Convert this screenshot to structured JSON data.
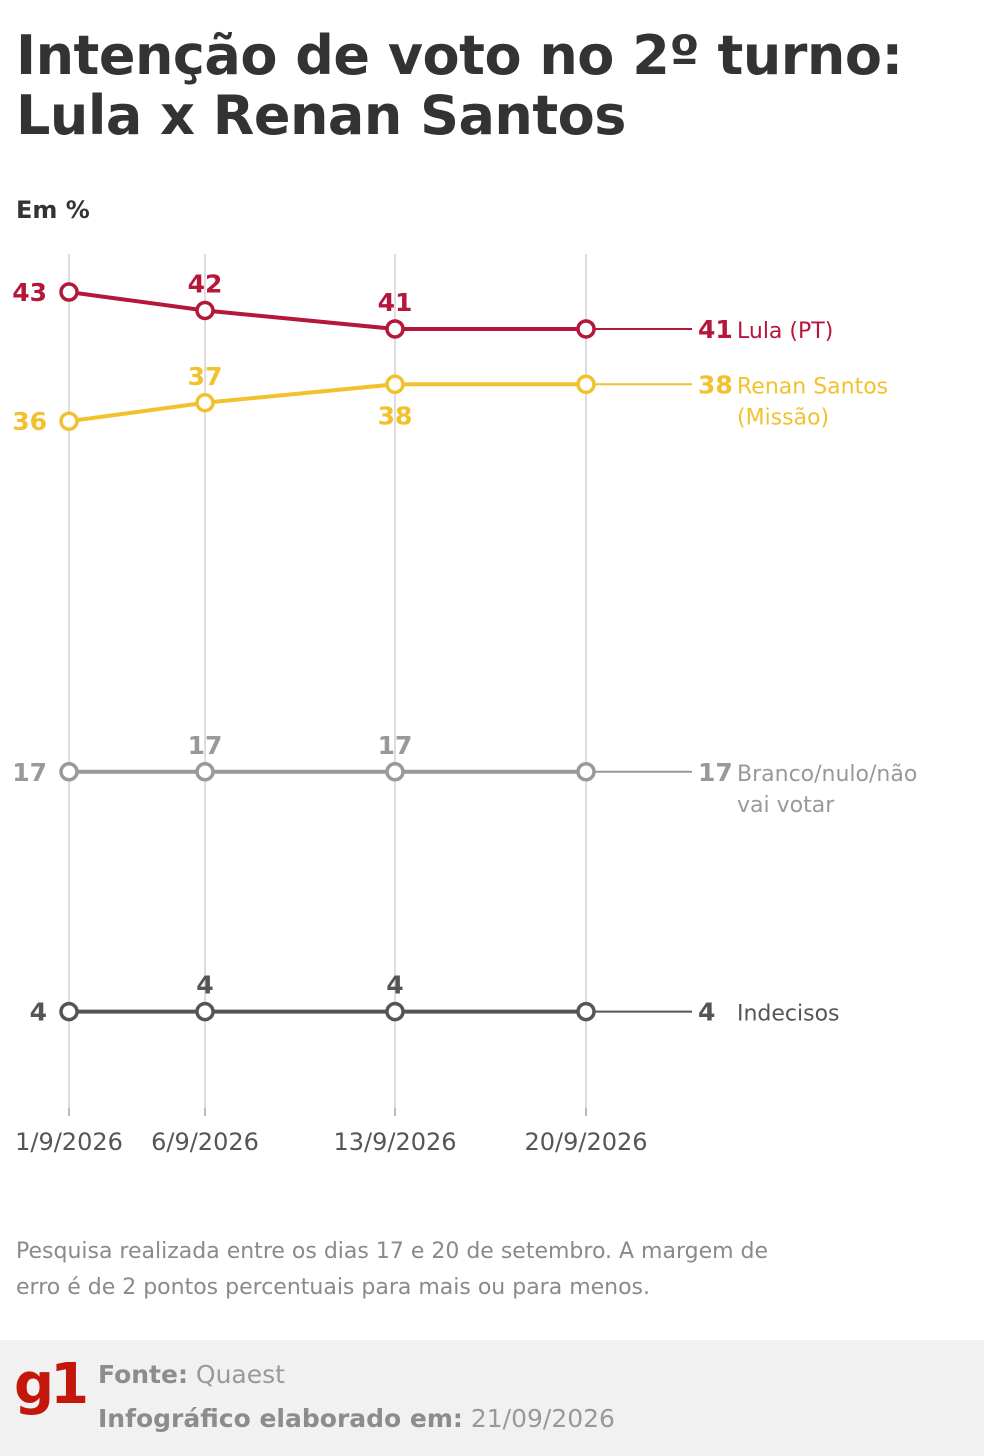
{
  "title": "Intenção de voto no 2º turno: Lula x Renan Santos",
  "unit_label": "Em %",
  "note": "Pesquisa realizada entre os dias 17 e 20 de setembro. A margem de erro é de 2 pontos percentuais para mais ou para menos.",
  "footer": {
    "source_label": "Fonte:",
    "source_value": "Quaest",
    "date_label": "Infográfico elaborado em:",
    "date_value": "21/09/2026",
    "logo_text": "g1"
  },
  "colors": {
    "lula": "#b5173b",
    "renan": "#f2c12e",
    "branco": "#999999",
    "indecisos": "#555555",
    "gridline": "#dddddd"
  },
  "chart_data": {
    "type": "line",
    "x": [
      "1/9/2026",
      "6/9/2026",
      "13/9/2026",
      "20/9/2026"
    ],
    "ylim": [
      0,
      45
    ],
    "grid": true,
    "legend": "right",
    "series": [
      {
        "key": "lula",
        "label_lines": [
          "Lula (PT)"
        ],
        "values": [
          43,
          42,
          41,
          41
        ],
        "label_pos": [
          "left",
          "above",
          "above",
          null
        ]
      },
      {
        "key": "renan",
        "label_lines": [
          "Renan Santos",
          "(Missão)"
        ],
        "values": [
          36,
          37,
          38,
          38
        ],
        "label_pos": [
          "left",
          "above",
          "below",
          null
        ]
      },
      {
        "key": "branco",
        "label_lines": [
          "Branco/nulo/não",
          "vai votar"
        ],
        "values": [
          17,
          17,
          17,
          17
        ],
        "label_pos": [
          "left",
          "above",
          "above",
          null
        ]
      },
      {
        "key": "indecisos",
        "label_lines": [
          "Indecisos"
        ],
        "values": [
          4,
          4,
          4,
          4
        ],
        "label_pos": [
          "left",
          "above",
          "above",
          null
        ]
      }
    ]
  }
}
